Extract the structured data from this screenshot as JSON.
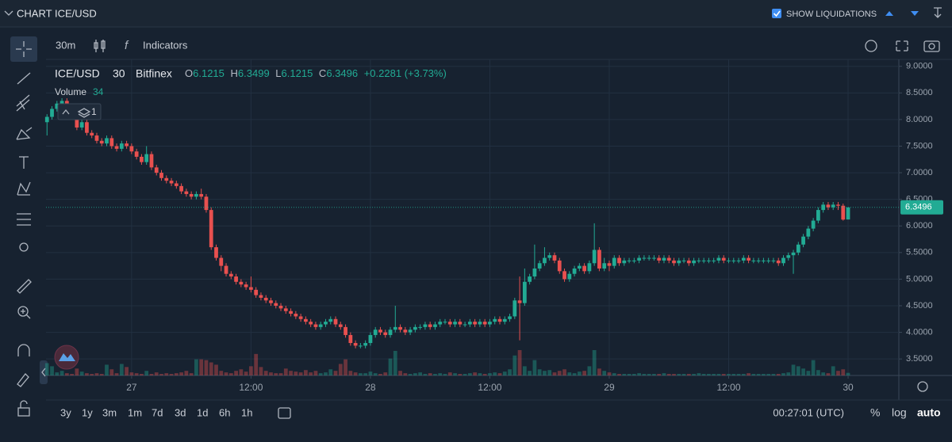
{
  "header": {
    "title": "CHART",
    "symbol": "ICE/USD",
    "liquidations": "SHOW LIQUIDATIONS"
  },
  "toolbar": {
    "interval": "30m",
    "indicators": "Indicators"
  },
  "legend": {
    "symbol": "ICE/USD",
    "interval": "30",
    "exchange": "Bitfinex",
    "o_label": "O",
    "h_label": "H",
    "l_label": "L",
    "c_label": "C",
    "change": "+0.2281",
    "change_pct": "(+3.73%)",
    "volume_label": "Volume",
    "layers": 1
  },
  "footer": {
    "ranges": [
      "3y",
      "1y",
      "3m",
      "1m",
      "7d",
      "3d",
      "1d",
      "6h",
      "1h"
    ],
    "clock": "00:27:01 (UTC)",
    "percent": "%",
    "log": "log",
    "auto": "auto"
  },
  "chart_data": {
    "type": "candlestick",
    "up_color": "#22ab94",
    "down_color": "#e8504f",
    "grid": true,
    "xlim": [
      -0.2,
      171.2
    ],
    "xticks": [
      {
        "value": 17,
        "label": "27"
      },
      {
        "value": 41,
        "label": "12:00"
      },
      {
        "value": 65,
        "label": "28"
      },
      {
        "value": 89,
        "label": "12:00"
      },
      {
        "value": 113,
        "label": "29"
      },
      {
        "value": 137,
        "label": "12:00"
      },
      {
        "value": 161,
        "label": "30"
      }
    ],
    "ylim": [
      3.19,
      9.13
    ],
    "yticks": [
      {
        "value": 3.5,
        "label": "3.5000"
      },
      {
        "value": 4,
        "label": "4.0000"
      },
      {
        "value": 4.5,
        "label": "4.5000"
      },
      {
        "value": 5,
        "label": "5.0000"
      },
      {
        "value": 5.5,
        "label": "5.5000"
      },
      {
        "value": 6,
        "label": "6.0000"
      },
      {
        "value": 6.5,
        "label": "6.5000"
      },
      {
        "value": 7,
        "label": "7.0000"
      },
      {
        "value": 7.5,
        "label": "7.5000"
      },
      {
        "value": 8,
        "label": "8.0000"
      },
      {
        "value": 8.5,
        "label": "8.5000"
      },
      {
        "value": 9,
        "label": "9.0000"
      }
    ],
    "x": [
      0,
      1,
      2,
      3,
      4,
      5,
      6,
      7,
      8,
      9,
      10,
      11,
      12,
      13,
      14,
      15,
      16,
      17,
      18,
      19,
      20,
      21,
      22,
      23,
      24,
      25,
      26,
      27,
      28,
      29,
      30,
      31,
      32,
      33,
      34,
      35,
      36,
      37,
      38,
      39,
      40,
      41,
      42,
      43,
      44,
      45,
      46,
      47,
      48,
      49,
      50,
      51,
      52,
      53,
      54,
      55,
      56,
      57,
      58,
      59,
      60,
      61,
      62,
      63,
      64,
      65,
      66,
      67,
      68,
      69,
      70,
      71,
      72,
      73,
      74,
      75,
      76,
      77,
      78,
      79,
      80,
      81,
      82,
      83,
      84,
      85,
      86,
      87,
      88,
      89,
      90,
      91,
      92,
      93,
      94,
      95,
      96,
      97,
      98,
      99,
      100,
      101,
      102,
      103,
      104,
      105,
      106,
      107,
      108,
      109,
      110,
      111,
      112,
      113,
      114,
      115,
      116,
      117,
      118,
      119,
      120,
      121,
      122,
      123,
      124,
      125,
      126,
      127,
      128,
      129,
      130,
      131,
      132,
      133,
      134,
      135,
      136,
      137,
      138,
      139,
      140,
      141,
      142,
      143,
      144,
      145,
      146,
      147,
      148,
      149,
      150,
      151,
      152,
      153,
      154,
      155,
      156,
      157,
      158,
      159,
      160,
      161
    ],
    "ohlc": [
      [
        7.95,
        8.1,
        7.7,
        8.05
      ],
      [
        8.05,
        8.25,
        8.0,
        8.2
      ],
      [
        8.2,
        8.35,
        8.15,
        8.3
      ],
      [
        8.3,
        8.4,
        8.25,
        8.35
      ],
      [
        8.35,
        8.4,
        8.2,
        8.25
      ],
      [
        8.25,
        8.3,
        8.05,
        8.1
      ],
      [
        8.1,
        8.15,
        7.8,
        7.85
      ],
      [
        7.85,
        8.0,
        7.8,
        7.95
      ],
      [
        7.95,
        8.0,
        7.7,
        7.75
      ],
      [
        7.75,
        7.8,
        7.65,
        7.7
      ],
      [
        7.7,
        7.75,
        7.55,
        7.6
      ],
      [
        7.6,
        7.65,
        7.5,
        7.55
      ],
      [
        7.55,
        7.7,
        7.5,
        7.65
      ],
      [
        7.65,
        7.7,
        7.45,
        7.5
      ],
      [
        7.5,
        7.55,
        7.4,
        7.45
      ],
      [
        7.45,
        7.6,
        7.4,
        7.55
      ],
      [
        7.55,
        7.6,
        7.45,
        7.5
      ],
      [
        7.5,
        7.55,
        7.35,
        7.4
      ],
      [
        7.4,
        7.45,
        7.25,
        7.3
      ],
      [
        7.3,
        7.35,
        7.15,
        7.2
      ],
      [
        7.2,
        7.5,
        7.15,
        7.35
      ],
      [
        7.35,
        7.4,
        7.05,
        7.1
      ],
      [
        7.1,
        7.15,
        6.95,
        7.0
      ],
      [
        7.0,
        7.05,
        6.85,
        6.9
      ],
      [
        6.9,
        6.95,
        6.8,
        6.85
      ],
      [
        6.85,
        6.9,
        6.75,
        6.8
      ],
      [
        6.8,
        6.85,
        6.7,
        6.75
      ],
      [
        6.75,
        6.8,
        6.6,
        6.65
      ],
      [
        6.65,
        6.7,
        6.55,
        6.6
      ],
      [
        6.6,
        6.65,
        6.5,
        6.55
      ],
      [
        6.55,
        6.65,
        6.5,
        6.6
      ],
      [
        6.6,
        6.7,
        6.5,
        6.55
      ],
      [
        6.55,
        6.6,
        6.25,
        6.3
      ],
      [
        6.3,
        6.35,
        5.55,
        5.6
      ],
      [
        5.6,
        5.65,
        5.35,
        5.4
      ],
      [
        5.4,
        5.45,
        5.15,
        5.25
      ],
      [
        5.25,
        5.3,
        5.05,
        5.1
      ],
      [
        5.1,
        5.15,
        5.0,
        5.05
      ],
      [
        5.05,
        5.1,
        4.9,
        4.95
      ],
      [
        4.95,
        5.0,
        4.85,
        4.9
      ],
      [
        4.9,
        4.95,
        4.8,
        4.85
      ],
      [
        4.85,
        5.05,
        4.75,
        4.8
      ],
      [
        4.8,
        4.85,
        4.65,
        4.7
      ],
      [
        4.7,
        4.75,
        4.6,
        4.65
      ],
      [
        4.65,
        4.7,
        4.55,
        4.6
      ],
      [
        4.6,
        4.65,
        4.5,
        4.55
      ],
      [
        4.55,
        4.6,
        4.45,
        4.5
      ],
      [
        4.5,
        4.55,
        4.4,
        4.45
      ],
      [
        4.45,
        4.5,
        4.35,
        4.4
      ],
      [
        4.4,
        4.45,
        4.3,
        4.35
      ],
      [
        4.35,
        4.4,
        4.25,
        4.3
      ],
      [
        4.3,
        4.35,
        4.2,
        4.25
      ],
      [
        4.25,
        4.3,
        4.15,
        4.2
      ],
      [
        4.2,
        4.25,
        4.1,
        4.15
      ],
      [
        4.15,
        4.2,
        4.05,
        4.1
      ],
      [
        4.1,
        4.2,
        4.05,
        4.15
      ],
      [
        4.15,
        4.25,
        4.1,
        4.2
      ],
      [
        4.2,
        4.3,
        4.15,
        4.25
      ],
      [
        4.25,
        4.3,
        4.1,
        4.15
      ],
      [
        4.15,
        4.2,
        4.05,
        4.1
      ],
      [
        4.1,
        4.15,
        3.9,
        3.95
      ],
      [
        3.95,
        4.0,
        3.75,
        3.8
      ],
      [
        3.8,
        3.85,
        3.7,
        3.75
      ],
      [
        3.75,
        3.8,
        3.7,
        3.75
      ],
      [
        3.75,
        3.85,
        3.7,
        3.8
      ],
      [
        3.8,
        4.0,
        3.75,
        3.95
      ],
      [
        3.95,
        4.1,
        3.9,
        4.05
      ],
      [
        4.05,
        4.1,
        3.95,
        4.0
      ],
      [
        4.0,
        4.05,
        3.9,
        3.95
      ],
      [
        3.95,
        4.1,
        3.9,
        4.05
      ],
      [
        4.05,
        4.5,
        4.0,
        4.1
      ],
      [
        4.1,
        4.15,
        4.0,
        4.05
      ],
      [
        4.05,
        4.1,
        3.95,
        4.0
      ],
      [
        4.0,
        4.1,
        3.95,
        4.05
      ],
      [
        4.05,
        4.15,
        4.0,
        4.1
      ],
      [
        4.1,
        4.15,
        4.05,
        4.1
      ],
      [
        4.1,
        4.2,
        4.05,
        4.15
      ],
      [
        4.15,
        4.2,
        4.05,
        4.1
      ],
      [
        4.1,
        4.2,
        4.05,
        4.15
      ],
      [
        4.15,
        4.25,
        4.1,
        4.2
      ],
      [
        4.2,
        4.25,
        4.15,
        4.2
      ],
      [
        4.2,
        4.25,
        4.1,
        4.15
      ],
      [
        4.15,
        4.25,
        4.1,
        4.2
      ],
      [
        4.2,
        4.25,
        4.1,
        4.15
      ],
      [
        4.15,
        4.2,
        4.1,
        4.15
      ],
      [
        4.15,
        4.25,
        4.1,
        4.2
      ],
      [
        4.2,
        4.25,
        4.1,
        4.15
      ],
      [
        4.15,
        4.25,
        4.1,
        4.2
      ],
      [
        4.2,
        4.25,
        4.1,
        4.15
      ],
      [
        4.15,
        4.25,
        4.1,
        4.2
      ],
      [
        4.2,
        4.3,
        4.15,
        4.25
      ],
      [
        4.25,
        4.3,
        4.15,
        4.2
      ],
      [
        4.2,
        4.3,
        4.15,
        4.25
      ],
      [
        4.25,
        4.35,
        4.2,
        4.3
      ],
      [
        4.3,
        4.65,
        4.25,
        4.6
      ],
      [
        4.6,
        5.05,
        3.85,
        4.55
      ],
      [
        4.55,
        5.2,
        4.5,
        4.95
      ],
      [
        4.95,
        5.1,
        4.9,
        5.05
      ],
      [
        5.05,
        5.65,
        5.0,
        5.2
      ],
      [
        5.2,
        5.35,
        5.15,
        5.3
      ],
      [
        5.3,
        5.6,
        5.25,
        5.4
      ],
      [
        5.4,
        5.5,
        5.35,
        5.45
      ],
      [
        5.45,
        5.5,
        5.3,
        5.35
      ],
      [
        5.35,
        5.4,
        5.1,
        5.15
      ],
      [
        5.15,
        5.2,
        4.95,
        5.0
      ],
      [
        5.0,
        5.15,
        4.95,
        5.1
      ],
      [
        5.1,
        5.25,
        5.05,
        5.2
      ],
      [
        5.2,
        5.3,
        5.15,
        5.25
      ],
      [
        5.25,
        5.3,
        5.1,
        5.15
      ],
      [
        5.15,
        5.35,
        5.1,
        5.3
      ],
      [
        5.3,
        6.05,
        5.25,
        5.55
      ],
      [
        5.55,
        5.6,
        5.15,
        5.2
      ],
      [
        5.2,
        5.4,
        5.15,
        5.3
      ],
      [
        5.3,
        5.35,
        5.15,
        5.25
      ],
      [
        5.25,
        5.45,
        5.2,
        5.4
      ],
      [
        5.4,
        5.45,
        5.25,
        5.3
      ],
      [
        5.3,
        5.4,
        5.25,
        5.35
      ],
      [
        5.35,
        5.4,
        5.3,
        5.35
      ],
      [
        5.35,
        5.4,
        5.3,
        5.35
      ],
      [
        5.35,
        5.45,
        5.3,
        5.4
      ],
      [
        5.4,
        5.45,
        5.35,
        5.4
      ],
      [
        5.4,
        5.45,
        5.35,
        5.4
      ],
      [
        5.4,
        5.45,
        5.35,
        5.4
      ],
      [
        5.4,
        5.45,
        5.3,
        5.35
      ],
      [
        5.35,
        5.45,
        5.3,
        5.4
      ],
      [
        5.4,
        5.45,
        5.3,
        5.35
      ],
      [
        5.35,
        5.4,
        5.25,
        5.3
      ],
      [
        5.3,
        5.4,
        5.25,
        5.35
      ],
      [
        5.35,
        5.4,
        5.3,
        5.35
      ],
      [
        5.35,
        5.4,
        5.25,
        5.3
      ],
      [
        5.3,
        5.4,
        5.25,
        5.35
      ],
      [
        5.35,
        5.4,
        5.3,
        5.35
      ],
      [
        5.35,
        5.4,
        5.3,
        5.35
      ],
      [
        5.35,
        5.4,
        5.3,
        5.35
      ],
      [
        5.35,
        5.4,
        5.3,
        5.35
      ],
      [
        5.35,
        5.45,
        5.3,
        5.4
      ],
      [
        5.4,
        5.45,
        5.3,
        5.35
      ],
      [
        5.35,
        5.4,
        5.3,
        5.35
      ],
      [
        5.35,
        5.4,
        5.3,
        5.35
      ],
      [
        5.35,
        5.4,
        5.3,
        5.35
      ],
      [
        5.35,
        5.45,
        5.3,
        5.4
      ],
      [
        5.4,
        5.45,
        5.3,
        5.35
      ],
      [
        5.35,
        5.4,
        5.3,
        5.35
      ],
      [
        5.35,
        5.4,
        5.3,
        5.35
      ],
      [
        5.35,
        5.4,
        5.3,
        5.35
      ],
      [
        5.35,
        5.4,
        5.3,
        5.35
      ],
      [
        5.35,
        5.4,
        5.3,
        5.35
      ],
      [
        5.35,
        5.4,
        5.25,
        5.3
      ],
      [
        5.3,
        5.45,
        5.25,
        5.4
      ],
      [
        5.4,
        5.5,
        5.35,
        5.45
      ],
      [
        5.45,
        5.55,
        5.1,
        5.5
      ],
      [
        5.5,
        5.7,
        5.45,
        5.65
      ],
      [
        5.65,
        5.85,
        5.6,
        5.8
      ],
      [
        5.8,
        6.0,
        5.75,
        5.95
      ],
      [
        5.95,
        6.15,
        5.9,
        6.1
      ],
      [
        6.1,
        6.35,
        6.05,
        6.3
      ],
      [
        6.3,
        6.45,
        6.25,
        6.4
      ],
      [
        6.4,
        6.45,
        6.3,
        6.35
      ],
      [
        6.35,
        6.45,
        6.3,
        6.4
      ],
      [
        6.4,
        6.45,
        6.3,
        6.38
      ],
      [
        6.38,
        6.42,
        6.1,
        6.12
      ],
      [
        6.1215,
        6.3499,
        6.1215,
        6.3496
      ]
    ],
    "volume": [
      160,
      120,
      40,
      60,
      30,
      20,
      90,
      50,
      30,
      20,
      30,
      20,
      140,
      80,
      30,
      150,
      110,
      40,
      30,
      20,
      60,
      20,
      40,
      20,
      30,
      20,
      30,
      40,
      60,
      30,
      210,
      210,
      200,
      170,
      140,
      60,
      40,
      30,
      60,
      80,
      50,
      120,
      280,
      110,
      60,
      40,
      30,
      30,
      90,
      60,
      50,
      40,
      70,
      40,
      60,
      30,
      40,
      80,
      60,
      150,
      210,
      60,
      40,
      30,
      30,
      50,
      30,
      20,
      40,
      220,
      320,
      60,
      30,
      20,
      30,
      40,
      20,
      30,
      20,
      30,
      20,
      40,
      30,
      20,
      20,
      30,
      40,
      30,
      20,
      30,
      40,
      30,
      50,
      80,
      260,
      330,
      120,
      60,
      200,
      80,
      60,
      70,
      40,
      60,
      80,
      40,
      30,
      50,
      60,
      120,
      330,
      90,
      60,
      40,
      30,
      20,
      20,
      20,
      20,
      30,
      20,
      20,
      20,
      20,
      30,
      20,
      20,
      20,
      20,
      20,
      20,
      30,
      20,
      20,
      20,
      20,
      20,
      20,
      20,
      20,
      20,
      30,
      20,
      20,
      20,
      20,
      20,
      20,
      30,
      40,
      140,
      120,
      90,
      60,
      200,
      70,
      40,
      30,
      120,
      60,
      80,
      34
    ]
  }
}
